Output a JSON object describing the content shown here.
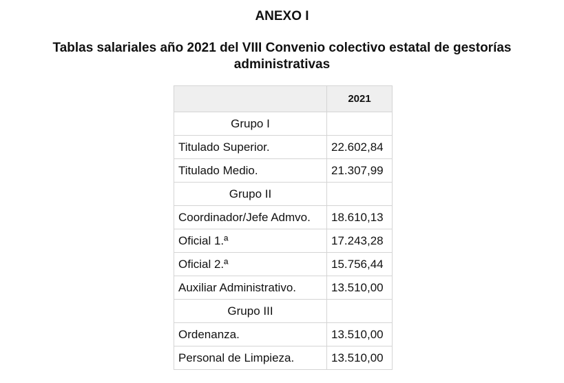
{
  "heading": "ANEXO I",
  "title": "Tablas salariales año 2021 del VIII Convenio colectivo estatal de gestorías administrativas",
  "table": {
    "header": [
      "",
      "2021"
    ],
    "rows": [
      {
        "type": "group",
        "label": "Grupo I",
        "value": ""
      },
      {
        "type": "item",
        "label": "Titulado Superior.",
        "value": "22.602,84"
      },
      {
        "type": "item",
        "label": "Titulado Medio.",
        "value": "21.307,99"
      },
      {
        "type": "group",
        "label": "Grupo II",
        "value": ""
      },
      {
        "type": "item",
        "label": "Coordinador/Jefe Admvo.",
        "value": "18.610,13"
      },
      {
        "type": "item",
        "label": "Oficial 1.ª",
        "value": "17.243,28"
      },
      {
        "type": "item",
        "label": "Oficial 2.ª",
        "value": "15.756,44"
      },
      {
        "type": "item",
        "label": "Auxiliar Administrativo.",
        "value": "13.510,00"
      },
      {
        "type": "group",
        "label": "Grupo III",
        "value": ""
      },
      {
        "type": "item",
        "label": "Ordenanza.",
        "value": "13.510,00"
      },
      {
        "type": "item",
        "label": "Personal de Limpieza.",
        "value": "13.510,00"
      }
    ]
  }
}
